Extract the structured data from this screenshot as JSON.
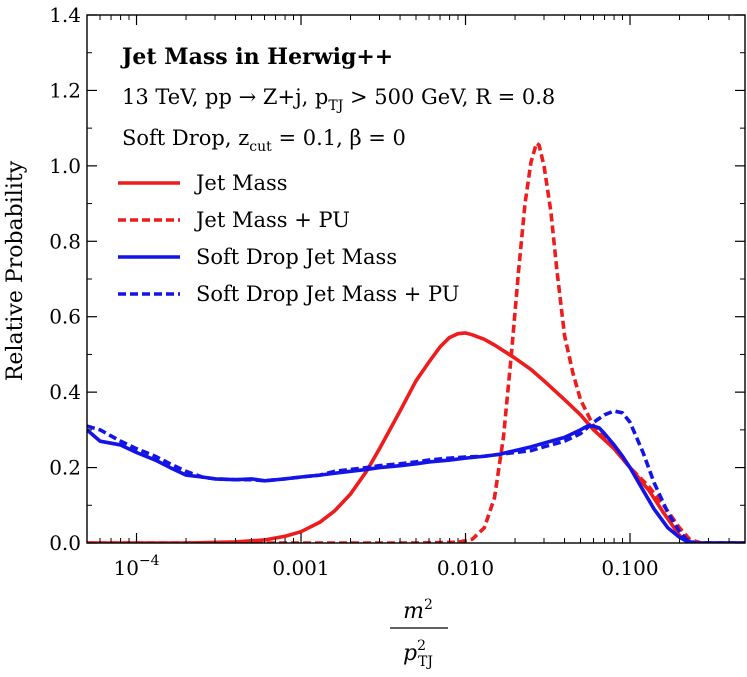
{
  "chart_data": {
    "type": "line",
    "title": "Jet Mass in Herwig++",
    "subtitle": "13 TeV, pp → Z+j, p",
    "subtitle_sub": "TJ",
    "subtitle_rest": " > 500 GeV, R = 0.8",
    "subtitle2_pre": "Soft Drop, z",
    "subtitle2_sub": "cut",
    "subtitle2_rest": " = 0.1, β = 0",
    "xlabel_num": "m",
    "xlabel_num_sup": "2",
    "xlabel_den": "p",
    "xlabel_den_sup": "2",
    "xlabel_den_sub": "TJ",
    "ylabel": "Relative Probability",
    "xscale": "log",
    "xlim": [
      5e-05,
      0.5
    ],
    "ylim": [
      0,
      1.4
    ],
    "xticks": [
      {
        "value": 0.0001,
        "base": "10",
        "exp": "−4"
      },
      {
        "value": 0.001,
        "label": "0.001"
      },
      {
        "value": 0.01,
        "label": "0.010"
      },
      {
        "value": 0.1,
        "label": "0.100"
      }
    ],
    "yticks": [
      "0.0",
      "0.2",
      "0.4",
      "0.6",
      "0.8",
      "1.0",
      "1.2",
      "1.4"
    ],
    "legend_position": "top-left",
    "series": [
      {
        "name": "Jet Mass",
        "color": "#ee1c1c",
        "dash": "solid",
        "x": [
          5e-05,
          0.0002,
          0.0004,
          0.0006,
          0.0008,
          0.001,
          0.0013,
          0.0016,
          0.002,
          0.0025,
          0.003,
          0.004,
          0.005,
          0.006,
          0.007,
          0.008,
          0.009,
          0.01,
          0.011,
          0.013,
          0.015,
          0.02,
          0.025,
          0.03,
          0.04,
          0.05,
          0.06,
          0.08,
          0.1,
          0.13,
          0.16,
          0.2,
          0.22,
          0.25,
          0.3,
          0.4,
          0.5
        ],
        "y": [
          0.0,
          0.0,
          0.003,
          0.008,
          0.018,
          0.03,
          0.055,
          0.085,
          0.13,
          0.19,
          0.25,
          0.35,
          0.43,
          0.48,
          0.52,
          0.545,
          0.555,
          0.557,
          0.552,
          0.54,
          0.525,
          0.49,
          0.46,
          0.43,
          0.38,
          0.34,
          0.3,
          0.25,
          0.2,
          0.14,
          0.08,
          0.02,
          0.005,
          0.0,
          0.0,
          0.0,
          0.0
        ]
      },
      {
        "name": "Jet Mass + PU",
        "color": "#ee1c1c",
        "dash": "dashed",
        "x": [
          5e-05,
          0.001,
          0.005,
          0.009,
          0.011,
          0.013,
          0.015,
          0.017,
          0.019,
          0.021,
          0.023,
          0.025,
          0.027,
          0.028,
          0.03,
          0.033,
          0.036,
          0.04,
          0.045,
          0.05,
          0.06,
          0.08,
          0.1,
          0.13,
          0.16,
          0.2,
          0.23,
          0.27,
          0.3,
          0.5
        ],
        "y": [
          0.0,
          0.0,
          0.0,
          0.002,
          0.01,
          0.04,
          0.12,
          0.28,
          0.5,
          0.72,
          0.9,
          1.01,
          1.06,
          1.055,
          1.0,
          0.88,
          0.72,
          0.55,
          0.45,
          0.38,
          0.31,
          0.25,
          0.2,
          0.15,
          0.1,
          0.04,
          0.01,
          0.0,
          0.0,
          0.0
        ]
      },
      {
        "name": "Soft Drop Jet Mass",
        "color": "#1414e6",
        "dash": "solid",
        "x": [
          5e-05,
          6e-05,
          8e-05,
          0.0001,
          0.00013,
          0.00016,
          0.0002,
          0.00025,
          0.0003,
          0.0004,
          0.0005,
          0.0006,
          0.0008,
          0.001,
          0.0013,
          0.0016,
          0.002,
          0.0025,
          0.003,
          0.004,
          0.005,
          0.006,
          0.008,
          0.01,
          0.013,
          0.016,
          0.02,
          0.025,
          0.03,
          0.04,
          0.05,
          0.055,
          0.06,
          0.065,
          0.07,
          0.08,
          0.09,
          0.1,
          0.12,
          0.14,
          0.17,
          0.2,
          0.22,
          0.25,
          0.3,
          0.4,
          0.5
        ],
        "y": [
          0.3,
          0.27,
          0.26,
          0.24,
          0.22,
          0.2,
          0.18,
          0.175,
          0.17,
          0.168,
          0.17,
          0.165,
          0.17,
          0.175,
          0.18,
          0.185,
          0.19,
          0.195,
          0.2,
          0.205,
          0.21,
          0.215,
          0.22,
          0.225,
          0.23,
          0.235,
          0.245,
          0.255,
          0.265,
          0.28,
          0.3,
          0.31,
          0.31,
          0.305,
          0.29,
          0.26,
          0.23,
          0.2,
          0.14,
          0.09,
          0.04,
          0.015,
          0.005,
          0.0,
          0.0,
          0.0,
          0.0
        ]
      },
      {
        "name": "Soft Drop Jet Mass + PU",
        "color": "#1414e6",
        "dash": "dashed",
        "x": [
          5e-05,
          6e-05,
          8e-05,
          0.0001,
          0.00013,
          0.00016,
          0.0002,
          0.00025,
          0.0003,
          0.0004,
          0.0005,
          0.0006,
          0.0008,
          0.001,
          0.0013,
          0.0016,
          0.002,
          0.0025,
          0.003,
          0.004,
          0.005,
          0.006,
          0.008,
          0.01,
          0.013,
          0.016,
          0.02,
          0.025,
          0.03,
          0.04,
          0.05,
          0.06,
          0.07,
          0.08,
          0.09,
          0.1,
          0.12,
          0.14,
          0.17,
          0.2,
          0.22,
          0.25,
          0.3,
          0.4,
          0.5
        ],
        "y": [
          0.31,
          0.3,
          0.27,
          0.25,
          0.23,
          0.21,
          0.19,
          0.175,
          0.17,
          0.168,
          0.168,
          0.165,
          0.17,
          0.175,
          0.18,
          0.19,
          0.195,
          0.2,
          0.205,
          0.21,
          0.215,
          0.22,
          0.225,
          0.228,
          0.23,
          0.235,
          0.24,
          0.245,
          0.255,
          0.27,
          0.29,
          0.32,
          0.34,
          0.35,
          0.345,
          0.32,
          0.24,
          0.16,
          0.08,
          0.03,
          0.01,
          0.0,
          0.0,
          0.0,
          0.0
        ]
      }
    ]
  }
}
